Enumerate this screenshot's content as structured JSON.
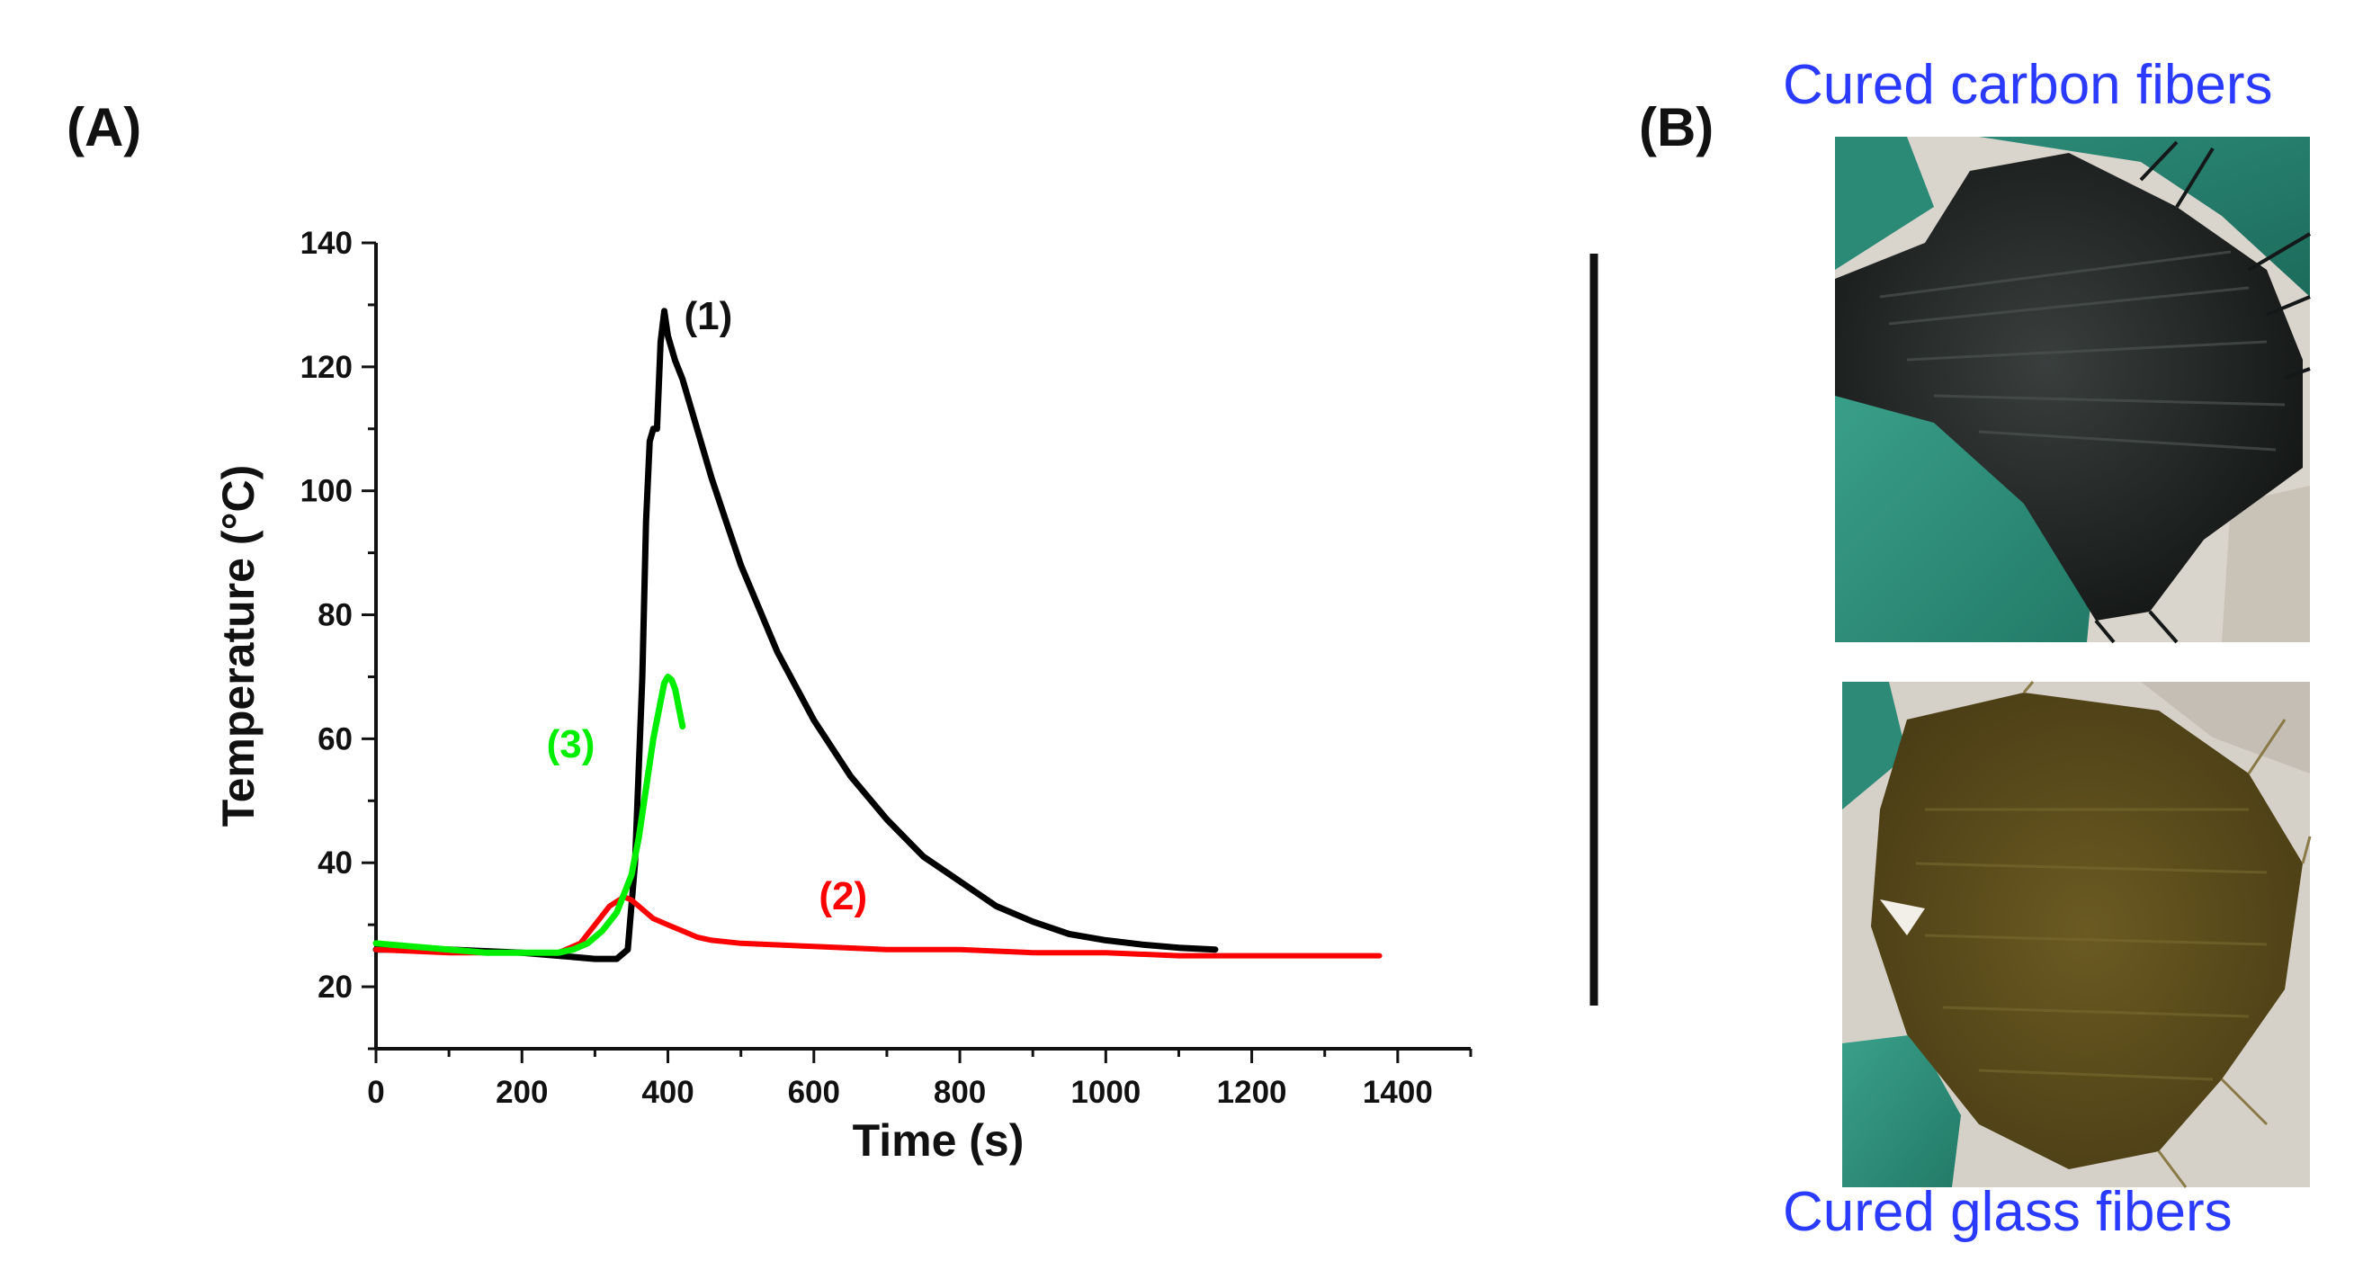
{
  "panels": {
    "a_label": "(A)",
    "b_label": "(B)"
  },
  "chart_data": {
    "type": "line",
    "title": "",
    "xlabel": "Time (s)",
    "ylabel": "Temperature (°C)",
    "xlim": [
      0,
      1500
    ],
    "ylim": [
      10,
      140
    ],
    "xticks": [
      0,
      200,
      400,
      600,
      800,
      1000,
      1200,
      1400
    ],
    "yticks": [
      20,
      40,
      60,
      80,
      100,
      120,
      140
    ],
    "grid": false,
    "series": [
      {
        "name": "(1)",
        "color": "#000000",
        "x": [
          0,
          100,
          200,
          250,
          300,
          330,
          345,
          355,
          365,
          370,
          375,
          380,
          385,
          390,
          395,
          400,
          410,
          420,
          440,
          460,
          480,
          500,
          550,
          600,
          650,
          700,
          750,
          800,
          850,
          900,
          950,
          1000,
          1050,
          1100,
          1150
        ],
        "y": [
          26,
          26,
          25.5,
          25,
          24.5,
          24.5,
          26,
          40,
          70,
          95,
          108,
          110,
          110,
          124,
          129,
          125,
          121,
          118,
          110,
          102,
          95,
          88,
          74,
          63,
          54,
          47,
          41,
          37,
          33,
          30.5,
          28.5,
          27.5,
          26.8,
          26.3,
          26
        ]
      },
      {
        "name": "(2)",
        "color": "#ff0000",
        "x": [
          0,
          100,
          200,
          250,
          280,
          300,
          320,
          340,
          350,
          360,
          380,
          400,
          420,
          440,
          460,
          500,
          600,
          700,
          800,
          900,
          1000,
          1100,
          1200,
          1300,
          1375
        ],
        "y": [
          26,
          25.5,
          25.5,
          25.5,
          27,
          30,
          33,
          34.5,
          34,
          33,
          31,
          30,
          29,
          28,
          27.5,
          27,
          26.5,
          26,
          26,
          25.5,
          25.5,
          25,
          25,
          25,
          25
        ]
      },
      {
        "name": "(3)",
        "color": "#00ee00",
        "x": [
          0,
          50,
          100,
          150,
          200,
          250,
          270,
          290,
          310,
          330,
          350,
          360,
          370,
          380,
          390,
          395,
          400,
          405,
          410,
          415,
          420
        ],
        "y": [
          27,
          26.5,
          26,
          25.5,
          25.5,
          25.5,
          26,
          27,
          29,
          32,
          38,
          44,
          52,
          60,
          66,
          69,
          70,
          69.5,
          68,
          65,
          62
        ]
      }
    ],
    "annotations": [
      {
        "text": "(1)",
        "series": 0
      },
      {
        "text": "(2)",
        "series": 1
      },
      {
        "text": "(3)",
        "series": 2
      }
    ]
  },
  "photos": {
    "top_caption": "Cured carbon fibers",
    "bottom_caption": "Cured glass fibers",
    "caption_color": "#2a3bff"
  }
}
